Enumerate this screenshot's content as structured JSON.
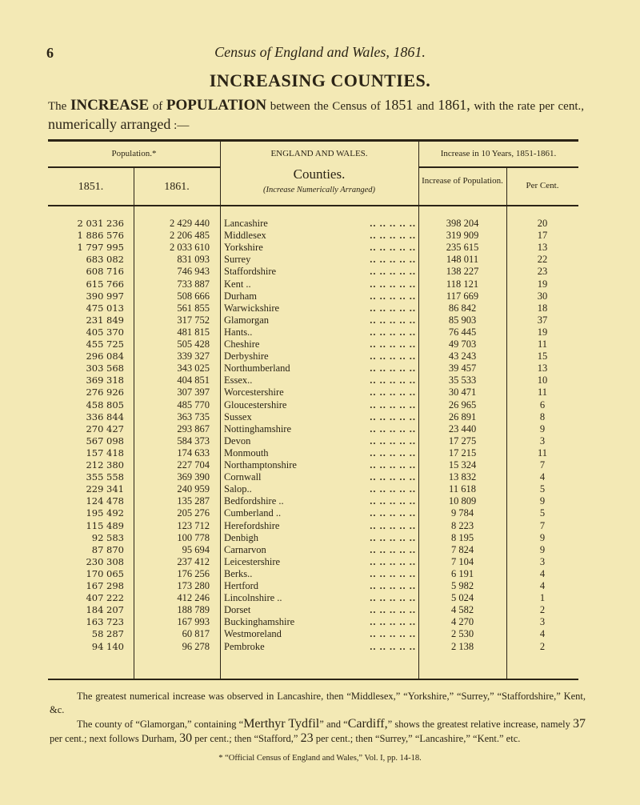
{
  "page": {
    "number": "6",
    "running_title": "Census of England and Wales, 1861.",
    "heading": "INCREASING COUNTIES.",
    "intro": {
      "t1": "The ",
      "t2": "INCREASE",
      "t3": " of ",
      "t4": "POPULATION",
      "t5": " between the Census of ",
      "t6": "1851",
      "t7": " and ",
      "t8": "1861,",
      "t9": " with the rate per cent., ",
      "t10": "numerically arranged",
      "t11": " :—"
    }
  },
  "table": {
    "headers": {
      "population": "Population.*",
      "y1851": "1851.",
      "y1861": "1861.",
      "region": "ENGLAND AND WALES.",
      "counties": "Counties.",
      "counties_sub": "(Increase Numerically Arranged)",
      "increase_group": "Increase in 10 Years, 1851-1861.",
      "increase": "Increase of Population.",
      "percent": "Per Cent."
    },
    "rows": [
      [
        "2 031 236",
        "2 429 440",
        "Lancashire",
        "398 204",
        "20"
      ],
      [
        "1 886 576",
        "2 206 485",
        "Middlesex",
        "319 909",
        "17"
      ],
      [
        "1 797 995",
        "2 033 610",
        "Yorkshire",
        "235 615",
        "13"
      ],
      [
        "683 082",
        "831 093",
        "Surrey",
        "148 011",
        "22"
      ],
      [
        "608 716",
        "746 943",
        "Staffordshire",
        "138 227",
        "23"
      ],
      [
        "615 766",
        "733 887",
        "Kent ..",
        "118 121",
        "19"
      ],
      [
        "390 997",
        "508 666",
        "Durham",
        "117 669",
        "30"
      ],
      [
        "475 013",
        "561 855",
        "Warwickshire",
        "86 842",
        "18"
      ],
      [
        "231 849",
        "317 752",
        "Glamorgan",
        "85 903",
        "37"
      ],
      [
        "405 370",
        "481 815",
        "Hants..",
        "76 445",
        "19"
      ],
      [
        "455 725",
        "505 428",
        "Cheshire",
        "49 703",
        "11"
      ],
      [
        "296 084",
        "339 327",
        "Derbyshire",
        "43 243",
        "15"
      ],
      [
        "303 568",
        "343 025",
        "Northumberland",
        "39 457",
        "13"
      ],
      [
        "369 318",
        "404 851",
        "Essex..",
        "35 533",
        "10"
      ],
      [
        "276 926",
        "307 397",
        "Worcestershire",
        "30 471",
        "11"
      ],
      [
        "458 805",
        "485 770",
        "Gloucestershire",
        "26 965",
        "6"
      ],
      [
        "336 844",
        "363 735",
        "Sussex",
        "26 891",
        "8"
      ],
      [
        "270 427",
        "293 867",
        "Nottinghamshire",
        "23 440",
        "9"
      ],
      [
        "567 098",
        "584 373",
        "Devon",
        "17 275",
        "3"
      ],
      [
        "157 418",
        "174 633",
        "Monmouth",
        "17 215",
        "11"
      ],
      [
        "212 380",
        "227 704",
        "Northamptonshire",
        "15 324",
        "7"
      ],
      [
        "355 558",
        "369 390",
        "Cornwall",
        "13 832",
        "4"
      ],
      [
        "229 341",
        "240 959",
        "Salop..",
        "11 618",
        "5"
      ],
      [
        "124 478",
        "135 287",
        "Bedfordshire ..",
        "10 809",
        "9"
      ],
      [
        "195 492",
        "205 276",
        "Cumberland ..",
        "9 784",
        "5"
      ],
      [
        "115 489",
        "123 712",
        "Herefordshire",
        "8 223",
        "7"
      ],
      [
        "92 583",
        "100 778",
        "Denbigh",
        "8 195",
        "9"
      ],
      [
        "87 870",
        "95 694",
        "Carnarvon",
        "7 824",
        "9"
      ],
      [
        "230 308",
        "237 412",
        "Leicestershire",
        "7 104",
        "3"
      ],
      [
        "170 065",
        "176 256",
        "Berks..",
        "6 191",
        "4"
      ],
      [
        "167 298",
        "173 280",
        "Hertford",
        "5 982",
        "4"
      ],
      [
        "407 222",
        "412 246",
        "Lincolnshire ..",
        "5 024",
        "1"
      ],
      [
        "184 207",
        "188 789",
        "Dorset",
        "4 582",
        "2"
      ],
      [
        "163 723",
        "167 993",
        "Buckinghamshire",
        "4 270",
        "3"
      ],
      [
        "58 287",
        "60 817",
        "Westmoreland",
        "2 530",
        "4"
      ],
      [
        "94 140",
        "96 278",
        "Pembroke",
        "2 138",
        "2"
      ]
    ]
  },
  "notes": {
    "p1": "The greatest numerical increase was observed in Lancashire, then “Middlesex,” “Yorkshire,” “Surrey,” “Staffordshire,” Kent, &c.",
    "p2a": "The county of “Glamorgan,” containing “",
    "p2b": "Merthyr Tydfil",
    "p2c": "” and “",
    "p2d": "Cardiff,",
    "p2e": "” shows the greatest relative increase, namely ",
    "p2f": "37",
    "p2g": " per cent.; next follows Durham, ",
    "p2h": "30",
    "p2i": " per cent.; then “Stafford,” ",
    "p2j": "23",
    "p2k": " per cent.; then “Surrey,” “Lancashire,” “Kent.” etc.",
    "footnote": "* “Official Census of England and Wales,” Vol. I, pp. 14-18."
  }
}
